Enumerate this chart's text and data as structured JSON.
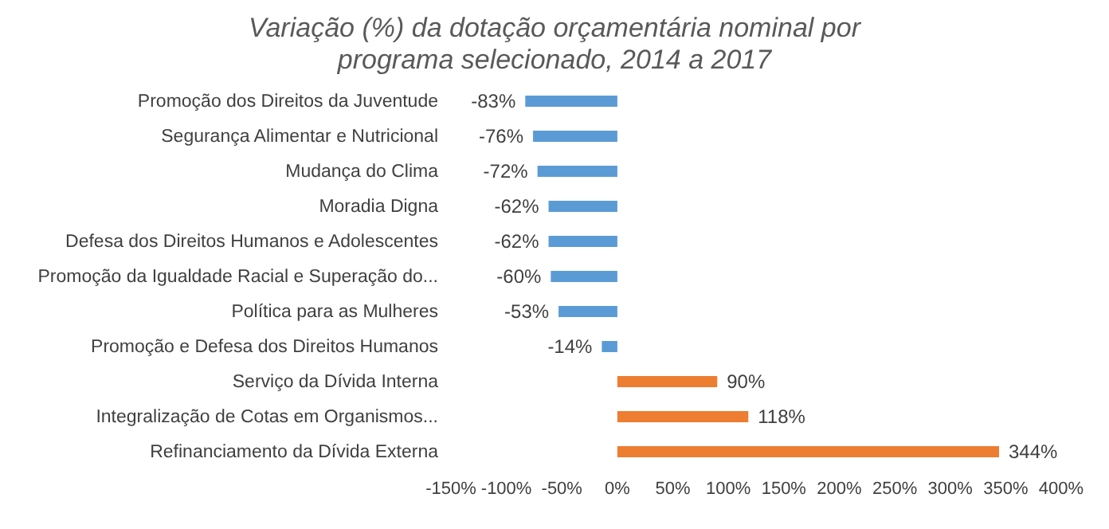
{
  "chart_data": {
    "type": "bar",
    "orientation": "horizontal",
    "title": "Variação (%) da dotação orçamentária nominal por programa selecionado, 2014 a 2017",
    "categories": [
      "Promoção dos Direitos da Juventude",
      "Segurança Alimentar e Nutricional",
      "Mudança do Clima",
      "Moradia Digna",
      "Defesa dos Direitos Humanos e Adolescentes",
      "Promoção da Igualdade Racial e Superação do...",
      "Política para as Mulheres",
      "Promoção e Defesa dos Direitos Humanos",
      "Serviço da Dívida Interna",
      "Integralização de Cotas em Organismos...",
      "Refinanciamento da Dívida Externa"
    ],
    "values": [
      -83,
      -76,
      -72,
      -62,
      -62,
      -60,
      -53,
      -14,
      90,
      118,
      344
    ],
    "colors": [
      "#5b9bd5",
      "#5b9bd5",
      "#5b9bd5",
      "#5b9bd5",
      "#5b9bd5",
      "#5b9bd5",
      "#5b9bd5",
      "#5b9bd5",
      "#ed7d31",
      "#ed7d31",
      "#ed7d31"
    ],
    "value_labels": [
      "-83%",
      "-76%",
      "-72%",
      "-62%",
      "-62%",
      "-60%",
      "-53%",
      "-14%",
      "90%",
      "118%",
      "344%"
    ],
    "xlim": [
      -150,
      400
    ],
    "xticks": [
      {
        "value": -150,
        "label": "-150%"
      },
      {
        "value": -100,
        "label": "-100%"
      },
      {
        "value": -50,
        "label": "-50%"
      },
      {
        "value": 0,
        "label": "0%"
      },
      {
        "value": 50,
        "label": "50%"
      },
      {
        "value": 100,
        "label": "100%"
      },
      {
        "value": 150,
        "label": "150%"
      },
      {
        "value": 200,
        "label": "200%"
      },
      {
        "value": 250,
        "label": "250%"
      },
      {
        "value": 300,
        "label": "300%"
      },
      {
        "value": 350,
        "label": "350%"
      },
      {
        "value": 400,
        "label": "400%"
      }
    ],
    "grid": false,
    "legend": false
  }
}
